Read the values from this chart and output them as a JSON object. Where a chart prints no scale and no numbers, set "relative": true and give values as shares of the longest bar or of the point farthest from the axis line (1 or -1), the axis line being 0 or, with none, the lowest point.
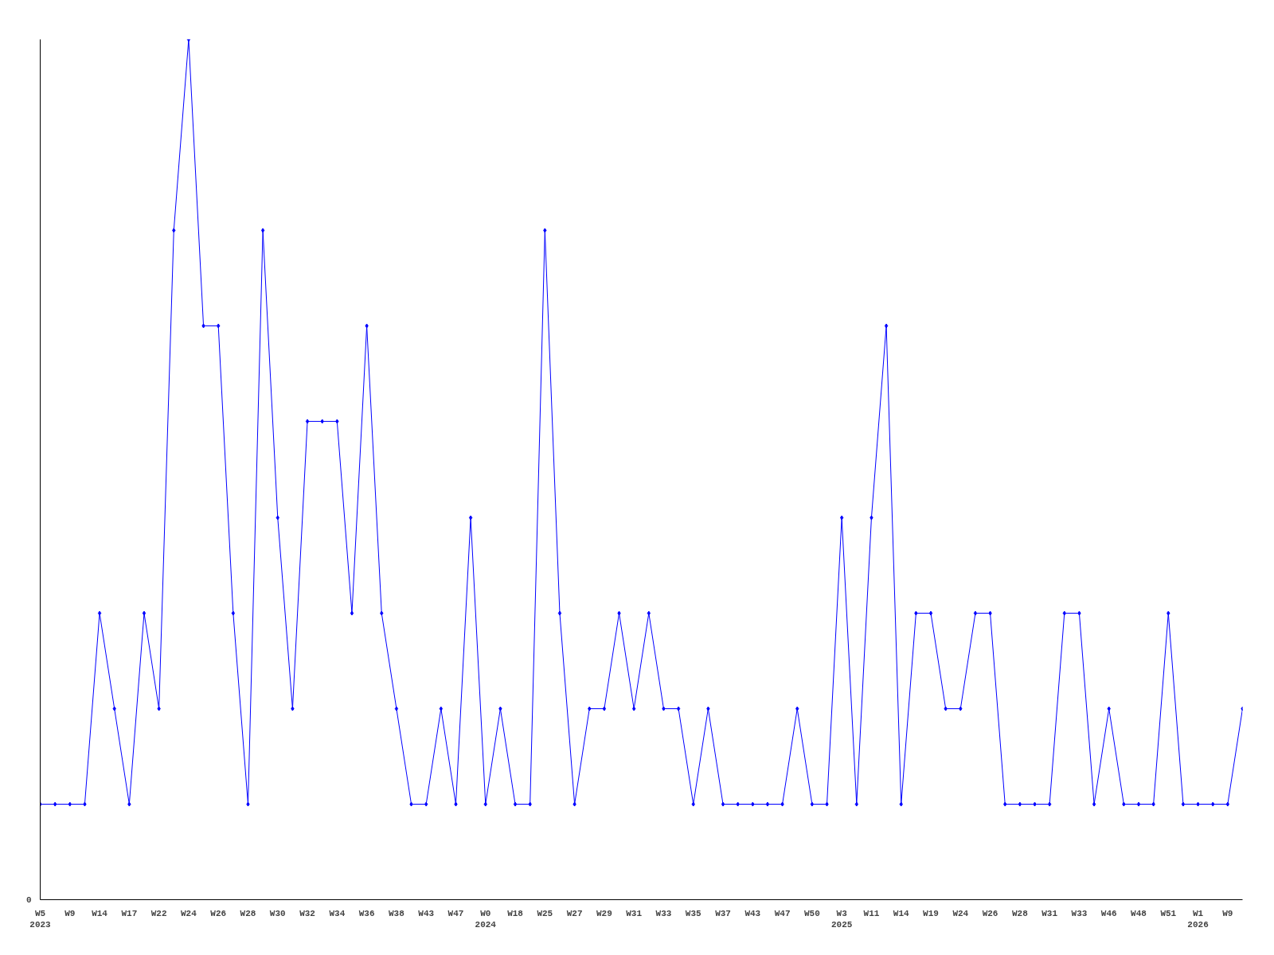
{
  "chart_data": {
    "type": "line",
    "relative": true,
    "marker": "diamond",
    "grid": false,
    "annotations": [
      "0"
    ],
    "categories": [
      "W5\n2023",
      null,
      "W9",
      null,
      "W14",
      null,
      "W17",
      null,
      "W22",
      null,
      "W24",
      null,
      "W26",
      null,
      "W28",
      null,
      "W30",
      null,
      "W32",
      null,
      "W34",
      null,
      "W36",
      null,
      "W38",
      null,
      "W43",
      null,
      "W47",
      null,
      "W0\n2024",
      null,
      "W18",
      null,
      "W25",
      null,
      "W27",
      null,
      "W29",
      null,
      "W31",
      null,
      "W33",
      null,
      "W35",
      null,
      "W37",
      null,
      "W43",
      null,
      "W47",
      null,
      "W50",
      null,
      "W3\n2025",
      null,
      "W11",
      null,
      "W14",
      null,
      "W19",
      null,
      "W24",
      null,
      "W26",
      null,
      "W28",
      null,
      "W31",
      null,
      "W33",
      null,
      "W46",
      null,
      "W48",
      null,
      "W51",
      null,
      "W1\n2026",
      null,
      "W9",
      null
    ],
    "series": [
      {
        "color": "#0000ff",
        "values": [
          0.111,
          0.111,
          0.111,
          0.111,
          0.333,
          0.222,
          0.111,
          0.333,
          0.222,
          0.778,
          1,
          0.667,
          0.667,
          0.333,
          0.111,
          0.778,
          0.444,
          0.222,
          0.556,
          0.556,
          0.556,
          0.333,
          0.667,
          0.333,
          0.222,
          0.111,
          0.111,
          0.222,
          0.111,
          0.444,
          0.111,
          0.222,
          0.111,
          0.111,
          0.778,
          0.333,
          0.111,
          0.222,
          0.222,
          0.333,
          0.222,
          0.333,
          0.222,
          0.222,
          0.111,
          0.222,
          0.111,
          0.111,
          0.111,
          0.111,
          0.111,
          0.222,
          0.111,
          0.111,
          0.444,
          0.111,
          0.444,
          0.667,
          0.111,
          0.333,
          0.333,
          0.222,
          0.222,
          0.333,
          0.333,
          0.111,
          0.111,
          0.111,
          0.111,
          0.333,
          0.333,
          0.111,
          0.222,
          0.111,
          0.111,
          0.111,
          0.333,
          0.111,
          0.111,
          0.111,
          0.111,
          0.222
        ]
      }
    ]
  }
}
